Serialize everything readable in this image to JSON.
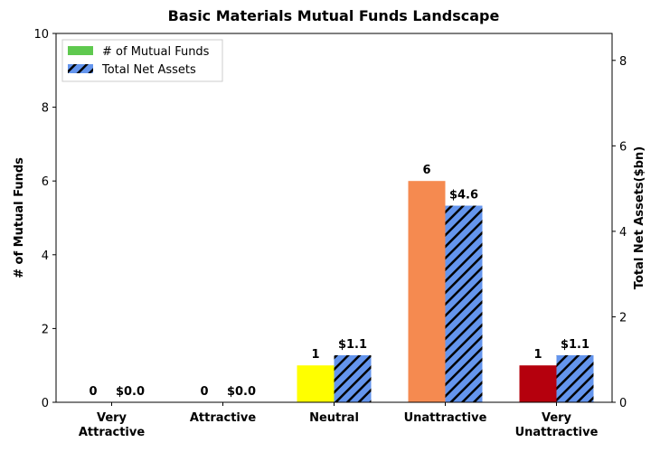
{
  "chart_data": {
    "type": "bar",
    "title": "Basic Materials Mutual Funds Landscape",
    "ylabel": "# of Mutual Funds",
    "y2label": "Total Net Assets($bn)",
    "categories": [
      "Very Attractive",
      "Attractive",
      "Neutral",
      "Unattractive",
      "Very Unattractive"
    ],
    "series": [
      {
        "name": "# of Mutual Funds",
        "color": "#5fc94f",
        "colors": [
          "#1a9641",
          "#a6d96a",
          "#ffff00",
          "#f58a50",
          "#b5000d"
        ],
        "values": [
          0,
          0,
          1,
          6,
          1
        ]
      },
      {
        "name": "Total Net Assets",
        "color": "#6495ed",
        "hatch": true,
        "axis": "y2",
        "values": [
          0,
          0,
          1.1,
          4.6,
          1.1
        ],
        "value_labels": [
          "$0.0",
          "$0.0",
          "$1.1",
          "$4.6",
          "$1.1"
        ]
      }
    ],
    "ylim": [
      0,
      10
    ],
    "yticks": [
      0,
      2,
      4,
      6,
      8,
      10
    ],
    "y2lim": [
      0,
      8.63
    ],
    "y2ticks": [
      0,
      2,
      4,
      6,
      8
    ],
    "legend": "upper left"
  }
}
